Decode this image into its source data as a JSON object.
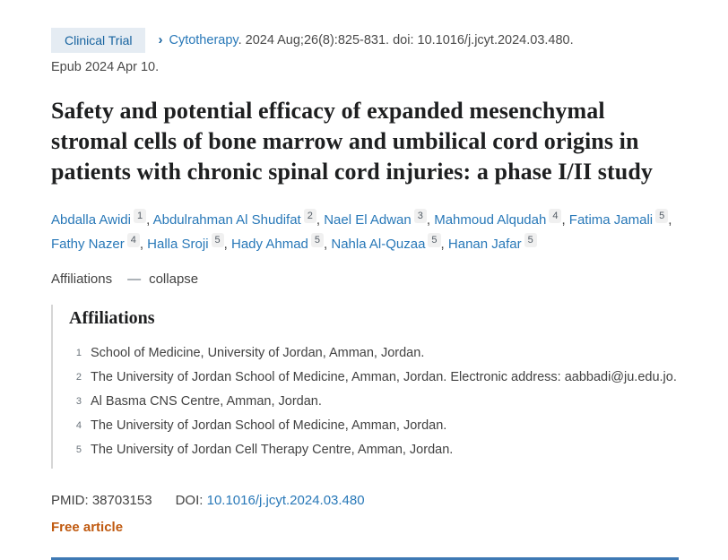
{
  "badge": {
    "label": "Clinical Trial"
  },
  "citation": {
    "chevron": "›",
    "journal": "Cytotherapy",
    "after_journal": ". 2024 Aug;26(8):825-831. doi: 10.1016/j.jcyt.2024.03.480.",
    "epub": "Epub 2024 Apr 10."
  },
  "title": "Safety and potential efficacy of expanded mesenchymal stromal cells of bone marrow and umbilical cord origins in patients with chronic spinal cord injuries: a phase I/II study",
  "authors": [
    {
      "name": "Abdalla Awidi",
      "sup": "1"
    },
    {
      "name": "Abdulrahman Al Shudifat",
      "sup": "2"
    },
    {
      "name": "Nael El Adwan",
      "sup": "3"
    },
    {
      "name": "Mahmoud Alqudah",
      "sup": "4"
    },
    {
      "name": "Fatima Jamali",
      "sup": "5"
    },
    {
      "name": "Fathy Nazer",
      "sup": "4"
    },
    {
      "name": "Halla Sroji",
      "sup": "5"
    },
    {
      "name": "Hady Ahmad",
      "sup": "5"
    },
    {
      "name": "Nahla Al-Quzaa",
      "sup": "5"
    },
    {
      "name": "Hanan Jafar",
      "sup": "5"
    }
  ],
  "affiliations_toggle": {
    "label": "Affiliations",
    "icon": "—",
    "action": "collapse"
  },
  "affiliations": {
    "heading": "Affiliations",
    "items": [
      {
        "num": "1",
        "text": "School of Medicine, University of Jordan, Amman, Jordan."
      },
      {
        "num": "2",
        "text": "The University of Jordan School of Medicine, Amman, Jordan. Electronic address: aabbadi@ju.edu.jo."
      },
      {
        "num": "3",
        "text": "Al Basma CNS Centre, Amman, Jordan."
      },
      {
        "num": "4",
        "text": "The University of Jordan School of Medicine, Amman, Jordan."
      },
      {
        "num": "5",
        "text": "The University of Jordan Cell Therapy Centre, Amman, Jordan."
      }
    ]
  },
  "identifiers": {
    "pmid_label": "PMID:",
    "pmid": "38703153",
    "doi_label": "DOI:",
    "doi": "10.1016/j.jcyt.2024.03.480"
  },
  "free_article_label": "Free article",
  "colors": {
    "link_blue": "#2878b8",
    "badge_bg": "#e5ecf3",
    "badge_text": "#17639f",
    "title_text": "#1e1f20",
    "body_text": "#424242",
    "free_article_orange": "#c05a10",
    "sup_badge_bg": "#f0f0f0",
    "affil_border_gray": "#d6d6d6",
    "bottom_rule_blue": "#3e79b4"
  }
}
